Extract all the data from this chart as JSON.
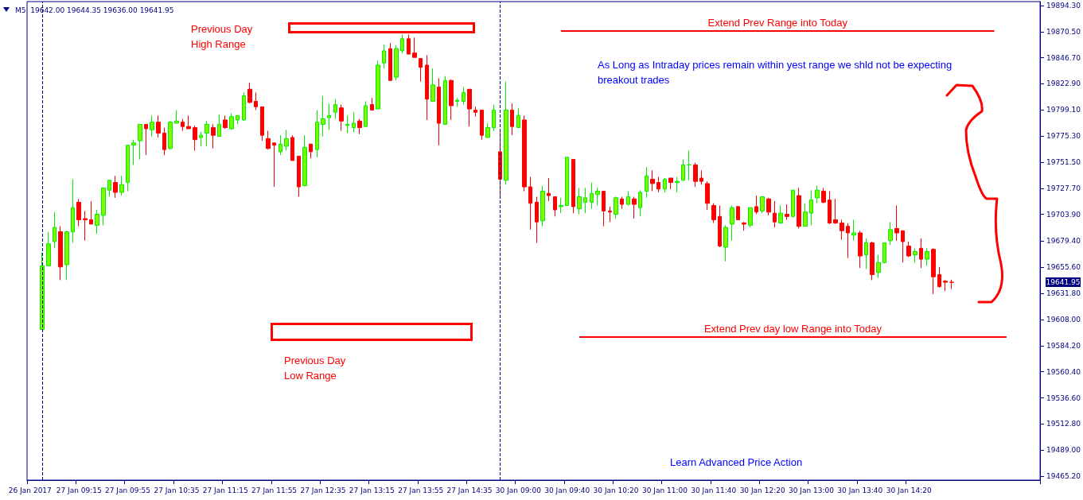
{
  "chart_data": {
    "type": "candlestick",
    "title": "M5  19642.00 19644.35 19636.00 19641.95",
    "categories": [
      "26 Jan 2017",
      null,
      null,
      null,
      null,
      null,
      null,
      null,
      "27 Jan 09:15",
      null,
      null,
      null,
      null,
      null,
      null,
      null,
      "27 Jan 09:55",
      null,
      null,
      null,
      null,
      null,
      null,
      null,
      "27 Jan 10:35",
      null,
      null,
      null,
      null,
      null,
      null,
      null,
      "27 Jan 11:15",
      null,
      null,
      null,
      null,
      null,
      null,
      null,
      "27 Jan 11:55",
      null,
      null,
      null,
      null,
      null,
      null,
      null,
      "27 Jan 12:35",
      null,
      null,
      null,
      null,
      null,
      null,
      null,
      "27 Jan 13:15",
      null,
      null,
      null,
      null,
      null,
      null,
      null,
      "27 Jan 13:55",
      null,
      null,
      null,
      null,
      null,
      null,
      null,
      "27 Jan 14:35",
      null,
      null,
      null,
      null,
      null,
      null,
      null,
      "30 Jan 09:00",
      null,
      null,
      null,
      null,
      null,
      null,
      null,
      "30 Jan 09:40",
      null,
      null,
      null,
      null,
      null,
      null,
      null,
      "30 Jan 10:20",
      null,
      null,
      null,
      null,
      null,
      null,
      null,
      "30 Jan 11:00",
      null,
      null,
      null,
      null,
      null,
      null,
      null,
      "30 Jan 11:40",
      null,
      null,
      null,
      null,
      null,
      null,
      null,
      "30 Jan 12:20",
      null,
      null,
      null,
      null,
      null,
      null,
      null,
      "30 Jan 13:00",
      null,
      null,
      null,
      null,
      null,
      null,
      null,
      "30 Jan 13:40",
      null,
      null,
      null,
      null,
      null,
      null,
      null,
      "30 Jan 14:20",
      null,
      null,
      null,
      null,
      null,
      null,
      null,
      null,
      null,
      null,
      null,
      null,
      null,
      null,
      null,
      null,
      null,
      null,
      null,
      null,
      null
    ],
    "ohlc": [
      null,
      null,
      [
        19599,
        19669,
        19599,
        19657
      ],
      [
        19657,
        19688,
        19657,
        19677
      ],
      [
        19679,
        19706,
        19673,
        19692
      ],
      [
        19688,
        19693,
        19644,
        19656
      ],
      [
        19658,
        19689,
        19644,
        19688
      ],
      [
        19688,
        19736,
        19678,
        19710
      ],
      [
        19715,
        19718,
        19693,
        19699
      ],
      [
        19700,
        19707,
        19680,
        19699
      ],
      [
        19699,
        19716,
        19695,
        19695
      ],
      [
        19694,
        19708,
        19686,
        19704
      ],
      [
        19703,
        19728,
        19694,
        19728
      ],
      [
        19726,
        19735,
        19720,
        19735
      ],
      [
        19733,
        19739,
        19719,
        19724
      ],
      [
        19724,
        19739,
        19721,
        19731
      ],
      [
        19733,
        19767,
        19725,
        19767
      ],
      [
        19767,
        19772,
        19749,
        19769
      ],
      [
        19771,
        19786,
        19754,
        19786
      ],
      [
        19786,
        19786,
        19758,
        19782
      ],
      [
        19781,
        19794,
        19775,
        19788
      ],
      [
        19788,
        19794,
        19774,
        19778
      ],
      [
        19778,
        19783,
        19758,
        19763
      ],
      [
        19764,
        19789,
        19763,
        19788
      ],
      [
        19787,
        19799,
        19787,
        19789
      ],
      [
        19788,
        19791,
        19780,
        19784
      ],
      [
        19784,
        19794,
        19782,
        19782
      ],
      [
        19783,
        19785,
        19762,
        19772
      ],
      [
        19774,
        19779,
        19766,
        19776
      ],
      [
        19778,
        19789,
        19766,
        19786
      ],
      [
        19783,
        19786,
        19764,
        19776
      ],
      [
        19775,
        19795,
        19775,
        19786
      ],
      [
        19790,
        19794,
        19782,
        19783
      ],
      [
        19782,
        19796,
        19781,
        19793
      ],
      [
        19790,
        19794,
        19786,
        19794
      ],
      [
        19790,
        19815,
        19789,
        19812
      ],
      [
        19818,
        19824,
        19805,
        19806
      ],
      [
        19807,
        19815,
        19799,
        19802
      ],
      [
        19802,
        19802,
        19771,
        19776
      ],
      [
        19773,
        19780,
        19763,
        19764
      ],
      [
        19769,
        19769,
        19729,
        19767
      ],
      [
        19761,
        19776,
        19758,
        19768
      ],
      [
        19766,
        19781,
        19762,
        19773
      ],
      [
        19774,
        19776,
        19753,
        19753
      ],
      [
        19757,
        19757,
        19720,
        19729
      ],
      [
        19730,
        19776,
        19730,
        19765
      ],
      [
        19768,
        19768,
        19755,
        19761
      ],
      [
        19763,
        19799,
        19756,
        19788
      ],
      [
        19786,
        19812,
        19775,
        19791
      ],
      [
        19792,
        19805,
        19781,
        19794
      ],
      [
        19797,
        19809,
        19791,
        19804
      ],
      [
        19801,
        19804,
        19780,
        19789
      ],
      [
        19785,
        19794,
        19778,
        19786
      ],
      [
        19783,
        19797,
        19779,
        19787
      ],
      [
        19789,
        19791,
        19777,
        19783
      ],
      [
        19784,
        19807,
        19784,
        19803
      ],
      [
        19804,
        19810,
        19799,
        19799
      ],
      [
        19800,
        19844,
        19800,
        19840
      ],
      [
        19842,
        19859,
        19837,
        19853
      ],
      [
        19855,
        19860,
        19826,
        19826
      ],
      [
        19829,
        19858,
        19826,
        19855
      ],
      [
        19853,
        19868,
        19851,
        19864
      ],
      [
        19864,
        19868,
        19850,
        19850
      ],
      [
        19851,
        19865,
        19847,
        19847
      ],
      [
        19846,
        19846,
        19825,
        19838
      ],
      [
        19840,
        19849,
        19790,
        19809
      ],
      [
        19807,
        19837,
        19807,
        19822
      ],
      [
        19820,
        19828,
        19767,
        19787
      ],
      [
        19786,
        19830,
        19786,
        19826
      ],
      [
        19826,
        19827,
        19790,
        19803
      ],
      [
        19807,
        19810,
        19802,
        19808
      ],
      [
        19807,
        19820,
        19804,
        19815
      ],
      [
        19818,
        19818,
        19784,
        19800
      ],
      [
        19799,
        19802,
        19793,
        19797
      ],
      [
        19799,
        19799,
        19772,
        19776
      ],
      [
        19774,
        19787,
        19774,
        19783
      ],
      [
        19783,
        19804,
        19780,
        19799
      ],
      [
        19761,
        19779,
        19721,
        19736
      ],
      [
        19735,
        19825,
        19731,
        19799
      ],
      [
        19799,
        19805,
        19776,
        19784
      ],
      [
        19783,
        19801,
        19783,
        19794
      ],
      [
        19790,
        19794,
        19725,
        19729
      ],
      [
        19729,
        19738,
        19690,
        19714
      ],
      [
        19715,
        19720,
        19678,
        19697
      ],
      [
        19698,
        19730,
        19693,
        19725
      ],
      [
        19723,
        19737,
        19716,
        19721
      ],
      [
        19720,
        19720,
        19702,
        19708
      ],
      [
        19711,
        19719,
        19705,
        19712
      ],
      [
        19712,
        19756,
        19712,
        19756
      ],
      [
        19754,
        19754,
        19705,
        19711
      ],
      [
        19709,
        19728,
        19704,
        19720
      ],
      [
        19715,
        19728,
        19705,
        19719
      ],
      [
        19715,
        19733,
        19709,
        19723
      ],
      [
        19722,
        19728,
        19712,
        19725
      ],
      [
        19725,
        19725,
        19693,
        19707
      ],
      [
        19707,
        19711,
        19697,
        19706
      ],
      [
        19704,
        19720,
        19700,
        19719
      ],
      [
        19718,
        19720,
        19709,
        19713
      ],
      [
        19713,
        19725,
        19712,
        19720
      ],
      [
        19718,
        19720,
        19700,
        19713
      ],
      [
        19710,
        19726,
        19702,
        19724
      ],
      [
        19725,
        19747,
        19719,
        19739
      ],
      [
        19736,
        19744,
        19725,
        19732
      ],
      [
        19733,
        19738,
        19724,
        19727
      ],
      [
        19727,
        19737,
        19724,
        19736
      ],
      [
        19737,
        19737,
        19727,
        19733
      ],
      [
        19733,
        19738,
        19724,
        19734
      ],
      [
        19735,
        19754,
        19735,
        19749
      ],
      [
        19749,
        19762,
        19735,
        19749
      ],
      [
        19749,
        19751,
        19729,
        19734
      ],
      [
        19737,
        19744,
        19731,
        19734
      ],
      [
        19732,
        19734,
        19708,
        19714
      ],
      [
        19712,
        19714,
        19696,
        19699
      ],
      [
        19702,
        19712,
        19674,
        19675
      ],
      [
        19674,
        19694,
        19661,
        19692
      ],
      [
        19695,
        19712,
        19680,
        19710
      ],
      [
        19711,
        19711,
        19699,
        19699
      ],
      [
        19696,
        19697,
        19689,
        19695
      ],
      [
        19694,
        19710,
        19692,
        19710
      ],
      [
        19711,
        19721,
        19704,
        19706
      ],
      [
        19707,
        19720,
        19705,
        19720
      ],
      [
        19718,
        19719,
        19703,
        19706
      ],
      [
        19705,
        19716,
        19692,
        19697
      ],
      [
        19696,
        19712,
        19696,
        19705
      ],
      [
        19704,
        19713,
        19699,
        19702
      ],
      [
        19702,
        19726,
        19701,
        19726
      ],
      [
        19721,
        19728,
        19691,
        19693
      ],
      [
        19693,
        19714,
        19693,
        19706
      ],
      [
        19705,
        19726,
        19694,
        19717
      ],
      [
        19719,
        19730,
        19714,
        19726
      ],
      [
        19725,
        19728,
        19714,
        19715
      ],
      [
        19717,
        19725,
        19695,
        19696
      ],
      [
        19699,
        19718,
        19695,
        19696
      ],
      [
        19696,
        19699,
        19681,
        19689
      ],
      [
        19693,
        19696,
        19664,
        19687
      ],
      [
        19685,
        19699,
        19680,
        19687
      ],
      [
        19687,
        19689,
        19655,
        19666
      ],
      [
        19667,
        19682,
        19654,
        19678
      ],
      [
        19678,
        19679,
        19644,
        19649
      ],
      [
        19651,
        19667,
        19646,
        19660
      ],
      [
        19660,
        19678,
        19659,
        19678
      ],
      [
        19680,
        19697,
        19676,
        19690
      ],
      [
        19691,
        19712,
        19680,
        19687
      ],
      [
        19689,
        19689,
        19660,
        19679
      ],
      [
        19675,
        19679,
        19665,
        19666
      ],
      [
        19667,
        19673,
        19660,
        19670
      ],
      [
        19673,
        19682,
        19655,
        19663
      ],
      [
        19663,
        19673,
        19657,
        19670
      ],
      [
        19672,
        19673,
        19631,
        19647
      ],
      [
        19649,
        19656,
        19637,
        19638
      ],
      [
        19643,
        19644,
        19634,
        19642
      ],
      [
        19642.0,
        19644.35,
        19636.0,
        19641.95
      ],
      null,
      null,
      null,
      null,
      null,
      null,
      null,
      null,
      null,
      null,
      null,
      null,
      null,
      null
    ],
    "ylim": [
      19461.6,
      19897.9
    ],
    "yticks": [
      {
        "value": 19894.3,
        "label": "19894.30"
      },
      {
        "value": 19870.5,
        "label": "19870.50"
      },
      {
        "value": 19846.7,
        "label": "19846.70"
      },
      {
        "value": 19822.9,
        "label": "19822.90"
      },
      {
        "value": 19799.1,
        "label": "19799.10"
      },
      {
        "value": 19775.3,
        "label": "19775.30"
      },
      {
        "value": 19751.5,
        "label": "19751.50"
      },
      {
        "value": 19727.7,
        "label": "19727.70"
      },
      {
        "value": 19703.9,
        "label": "19703.90"
      },
      {
        "value": 19679.4,
        "label": "19679.40"
      },
      {
        "value": 19655.6,
        "label": "19655.60"
      },
      {
        "value": 19631.8,
        "label": "19631.80"
      },
      {
        "value": 19608,
        "label": "19608.00"
      },
      {
        "value": 19584.2,
        "label": "19584.20"
      },
      {
        "value": 19560.4,
        "label": "19560.40"
      },
      {
        "value": 19536.6,
        "label": "19536.60"
      },
      {
        "value": 19512.8,
        "label": "19512.80"
      },
      {
        "value": 19489,
        "label": "19489.00"
      },
      {
        "value": 19465.2,
        "label": "19465.20"
      }
    ],
    "ref_lines": [
      {
        "axis": "y",
        "value": 19871,
        "label": "Extend Prev Range into Today",
        "color": "#ff0000"
      },
      {
        "axis": "y",
        "value": 19592,
        "label": "Extend Prev day low Range into Today",
        "color": "#ff0000"
      }
    ],
    "annotations": [
      "Previous Day High Range",
      "Previous Day Low Range",
      "As Long as Intraday prices remain within yest range we shld not be expecting breakout trades",
      "Learn Advanced Price Action",
      "19641.95"
    ],
    "grid": false
  }
}
